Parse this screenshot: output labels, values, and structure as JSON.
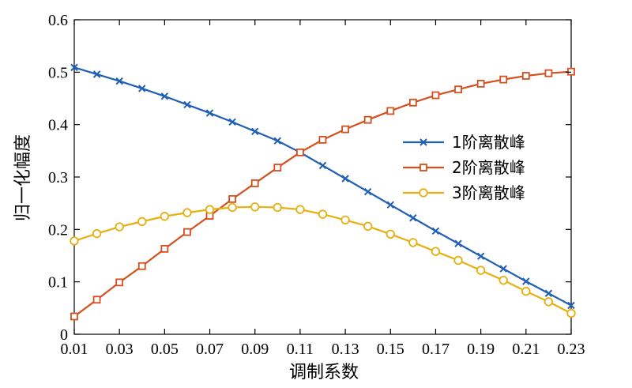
{
  "chart_data": {
    "type": "line",
    "title": "",
    "xlabel": "调制系数",
    "ylabel": "归一化幅度",
    "xlim": [
      0.01,
      0.23
    ],
    "ylim": [
      0,
      0.6
    ],
    "x": [
      0.01,
      0.02,
      0.03,
      0.04,
      0.05,
      0.06,
      0.07,
      0.08,
      0.09,
      0.1,
      0.11,
      0.12,
      0.13,
      0.14,
      0.15,
      0.16,
      0.17,
      0.18,
      0.19,
      0.2,
      0.21,
      0.22,
      0.23
    ],
    "x_ticks": [
      "0.01",
      "0.03",
      "0.05",
      "0.07",
      "0.09",
      "0.11",
      "0.13",
      "0.15",
      "0.17",
      "0.19",
      "0.21",
      "0.23"
    ],
    "y_ticks": [
      "0",
      "0.1",
      "0.2",
      "0.3",
      "0.4",
      "0.5",
      "0.6"
    ],
    "grid": false,
    "legend_position": "center-right",
    "series": [
      {
        "name": "1阶离散峰",
        "color": "#1f5fb4",
        "marker": "x",
        "values": [
          0.509,
          0.496,
          0.483,
          0.469,
          0.454,
          0.438,
          0.422,
          0.405,
          0.387,
          0.369,
          0.347,
          0.322,
          0.297,
          0.272,
          0.247,
          0.222,
          0.197,
          0.173,
          0.149,
          0.125,
          0.101,
          0.078,
          0.055
        ]
      },
      {
        "name": "2阶离散峰",
        "color": "#d4501e",
        "marker": "square",
        "values": [
          0.034,
          0.066,
          0.099,
          0.13,
          0.163,
          0.195,
          0.226,
          0.258,
          0.288,
          0.318,
          0.347,
          0.371,
          0.391,
          0.409,
          0.426,
          0.442,
          0.456,
          0.467,
          0.478,
          0.486,
          0.493,
          0.498,
          0.501
        ]
      },
      {
        "name": "3阶离散峰",
        "color": "#e6b011",
        "marker": "circle",
        "values": [
          0.178,
          0.192,
          0.205,
          0.215,
          0.225,
          0.232,
          0.238,
          0.242,
          0.243,
          0.242,
          0.238,
          0.229,
          0.218,
          0.206,
          0.191,
          0.175,
          0.158,
          0.141,
          0.122,
          0.103,
          0.082,
          0.062,
          0.04
        ]
      }
    ]
  }
}
